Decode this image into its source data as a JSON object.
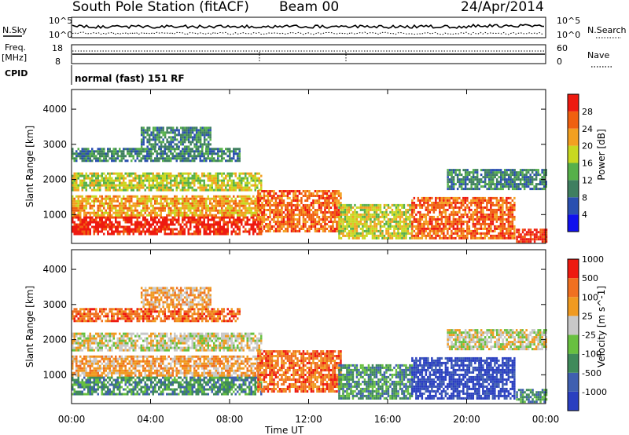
{
  "header": {
    "station": "South Pole Station (fitACF)",
    "beam": "Beam 00",
    "date": "24/Apr/2014"
  },
  "top_panels": {
    "nsky_label": "N.Sky",
    "nsearch_label": "N.Search",
    "nsky_ticks": [
      "10^5",
      "10^0"
    ],
    "nsearch_ticks": [
      "10^5",
      "10^0"
    ],
    "freq_label_1": "Freq.",
    "freq_label_2": "[MHz]",
    "freq_ticks": [
      "18",
      "8"
    ],
    "nave_label": "Nave",
    "nave_ticks": [
      "60",
      "0"
    ],
    "cpid_label": "CPID",
    "cpid_text": "normal (fast) 151 RF"
  },
  "time_axis": {
    "label": "Time UT",
    "ticks": [
      "00:00",
      "04:00",
      "08:00",
      "12:00",
      "16:00",
      "20:00",
      "00:00"
    ]
  },
  "chart_data": [
    {
      "type": "heatmap",
      "name": "power",
      "ylabel": "Slant Range [km]",
      "yticks": [
        1000,
        2000,
        3000,
        4000
      ],
      "ylim": [
        180,
        4560
      ],
      "xlim_hours": [
        0,
        24
      ],
      "colorbar": {
        "label": "Power [dB]",
        "ticks": [
          "4",
          "8",
          "12",
          "16",
          "20",
          "24",
          "28"
        ],
        "colors": [
          "#1010ee",
          "#2a4fb0",
          "#3f7f60",
          "#56b04a",
          "#c8d820",
          "#f3a020",
          "#f06010",
          "#ee1a10"
        ]
      },
      "bands": [
        {
          "start_h": 0.0,
          "end_h": 9.6,
          "range_lo": 450,
          "range_hi": 950,
          "level": 7
        },
        {
          "start_h": 0.0,
          "end_h": 9.6,
          "range_lo": 950,
          "range_hi": 1550,
          "level": 5
        },
        {
          "start_h": 0.0,
          "end_h": 9.6,
          "range_lo": 1700,
          "range_hi": 2200,
          "level": 4
        },
        {
          "start_h": 0.0,
          "end_h": 8.5,
          "range_lo": 2500,
          "range_hi": 2900,
          "level": 2
        },
        {
          "start_h": 3.5,
          "end_h": 7.0,
          "range_lo": 2900,
          "range_hi": 3500,
          "level": 2
        },
        {
          "start_h": 9.4,
          "end_h": 13.6,
          "range_lo": 500,
          "range_hi": 1700,
          "level": 6
        },
        {
          "start_h": 13.5,
          "end_h": 17.2,
          "range_lo": 300,
          "range_hi": 1300,
          "level": 4
        },
        {
          "start_h": 17.2,
          "end_h": 22.4,
          "range_lo": 300,
          "range_hi": 1500,
          "level": 6
        },
        {
          "start_h": 19.0,
          "end_h": 24.0,
          "range_lo": 1700,
          "range_hi": 2300,
          "level": 2
        },
        {
          "start_h": 22.5,
          "end_h": 24.0,
          "range_lo": 200,
          "range_hi": 600,
          "level": 7
        }
      ]
    },
    {
      "type": "heatmap",
      "name": "velocity",
      "ylabel": "Slant Range [km]",
      "yticks": [
        1000,
        2000,
        3000,
        4000
      ],
      "ylim": [
        180,
        4560
      ],
      "xlim_hours": [
        0,
        24
      ],
      "colorbar": {
        "label": "Velocity [m s^-1]",
        "ticks": [
          "1000",
          "500",
          "100",
          "25",
          "-25",
          "-100",
          "-500",
          "-1000"
        ],
        "colors": [
          "#2a3fc0",
          "#3f5fb0",
          "#3f8a5a",
          "#68c040",
          "#c8c8c8",
          "#f09a20",
          "#f07020",
          "#ee1a10"
        ]
      },
      "bands": [
        {
          "start_h": 0.0,
          "end_h": 9.6,
          "range_lo": 450,
          "range_hi": 950,
          "level": 2
        },
        {
          "start_h": 0.0,
          "end_h": 9.6,
          "range_lo": 950,
          "range_hi": 1550,
          "level": 5
        },
        {
          "start_h": 0.0,
          "end_h": 9.6,
          "range_lo": 1700,
          "range_hi": 2200,
          "level": 4
        },
        {
          "start_h": 0.0,
          "end_h": 8.5,
          "range_lo": 2500,
          "range_hi": 2900,
          "level": 6
        },
        {
          "start_h": 3.5,
          "end_h": 7.0,
          "range_lo": 2900,
          "range_hi": 3500,
          "level": 5
        },
        {
          "start_h": 9.4,
          "end_h": 13.6,
          "range_lo": 500,
          "range_hi": 1700,
          "level": 6
        },
        {
          "start_h": 13.5,
          "end_h": 17.2,
          "range_lo": 300,
          "range_hi": 1300,
          "level": 2
        },
        {
          "start_h": 17.2,
          "end_h": 22.4,
          "range_lo": 300,
          "range_hi": 1500,
          "level": 0
        },
        {
          "start_h": 19.0,
          "end_h": 24.0,
          "range_lo": 1700,
          "range_hi": 2300,
          "level": 4
        },
        {
          "start_h": 22.5,
          "end_h": 24.0,
          "range_lo": 200,
          "range_hi": 600,
          "level": 2
        }
      ]
    }
  ]
}
